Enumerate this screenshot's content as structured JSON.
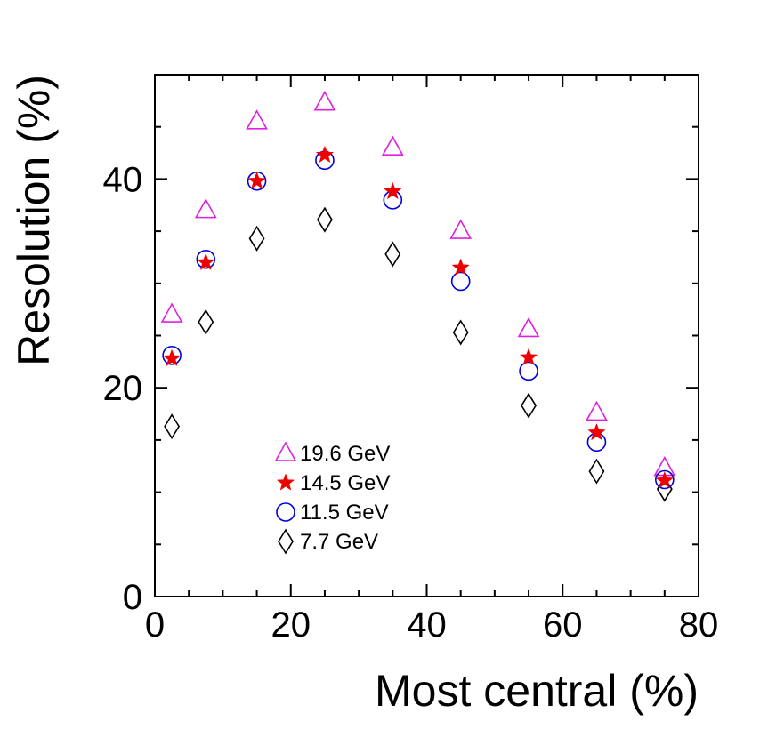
{
  "chart_data": {
    "type": "scatter",
    "xlabel": "Most central (%)",
    "ylabel": "Resolution (%)",
    "xlim": [
      0,
      80
    ],
    "ylim": [
      0,
      50
    ],
    "xticks": [
      0,
      20,
      40,
      60,
      80
    ],
    "yticks": [
      0,
      20,
      40
    ],
    "x_minor_step": 5,
    "y_minor_step": 5,
    "grid": false,
    "legend_position": "bottom-left",
    "series": [
      {
        "name": "19.6 GeV",
        "marker": "open-triangle",
        "color": "#e020e0",
        "x": [
          2.5,
          7.5,
          15,
          25,
          35,
          45,
          55,
          65,
          75
        ],
        "y": [
          27.0,
          37.0,
          45.5,
          47.3,
          43.0,
          35.0,
          25.6,
          17.6,
          12.3
        ]
      },
      {
        "name": "14.5 GeV",
        "marker": "filled-star",
        "color": "#ee0000",
        "x": [
          2.5,
          7.5,
          15,
          25,
          35,
          45,
          55,
          65,
          75
        ],
        "y": [
          22.8,
          32.0,
          39.8,
          42.3,
          38.8,
          31.5,
          22.9,
          15.7,
          11.1
        ]
      },
      {
        "name": "11.5 GeV",
        "marker": "open-circle",
        "color": "#0000dd",
        "x": [
          2.5,
          7.5,
          15,
          25,
          35,
          45,
          55,
          65,
          75
        ],
        "y": [
          23.1,
          32.3,
          39.8,
          41.8,
          38.0,
          30.2,
          21.6,
          14.8,
          11.2
        ]
      },
      {
        "name": "7.7 GeV",
        "marker": "open-diamond",
        "color": "#000000",
        "x": [
          2.5,
          7.5,
          15,
          25,
          35,
          45,
          55,
          65,
          75
        ],
        "y": [
          16.3,
          26.3,
          34.3,
          36.1,
          32.8,
          25.3,
          18.3,
          12.0,
          10.3
        ]
      }
    ]
  }
}
